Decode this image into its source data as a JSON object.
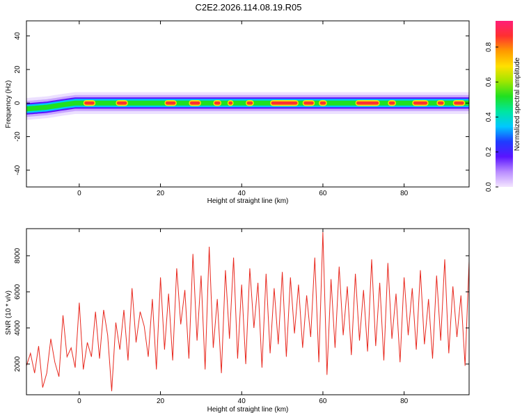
{
  "figure_title": "C2E2.2026.114.08.19.R05",
  "colors": {
    "snr_line": "#e8281e",
    "frame": "#000000"
  },
  "chart_data": [
    {
      "type": "heatmap",
      "xlabel": "Height of straight line (km)",
      "ylabel": "Frequency (Hz)",
      "xlim": [
        -13,
        96
      ],
      "ylim": [
        -50,
        49
      ],
      "xticks": [
        0,
        20,
        40,
        60,
        80
      ],
      "yticks": [
        -40,
        -20,
        0,
        20,
        40
      ],
      "colorbar": {
        "label": "Normalized spectral amplitude",
        "range": [
          0,
          0.95
        ],
        "ticks": [
          0.0,
          0.2,
          0.4,
          0.6,
          0.8
        ],
        "tick_labels": [
          "0.0",
          "0.2",
          "0.4",
          "0.6",
          "0.8"
        ],
        "colormap": [
          "#f4e6ff",
          "#b98cff",
          "#5a14ff",
          "#1e3cff",
          "#00c8ff",
          "#00e6a0",
          "#20e020",
          "#a0e600",
          "#ffe000",
          "#ff9a00",
          "#ff3030",
          "#ff1e78"
        ]
      },
      "band": {
        "center_hz": [
          [
            -13,
            -3.5
          ],
          [
            -8,
            -2.5
          ],
          [
            -4,
            -1
          ],
          [
            -1,
            0
          ],
          [
            5,
            0
          ],
          [
            15,
            0
          ],
          [
            40,
            0
          ],
          [
            96,
            0
          ]
        ],
        "half_width_hz": 2.5,
        "hot_segments_km": [
          [
            1,
            4
          ],
          [
            9,
            12
          ],
          [
            21,
            24
          ],
          [
            27,
            30
          ],
          [
            33,
            35
          ],
          [
            36.5,
            38
          ],
          [
            41,
            43
          ],
          [
            47,
            54
          ],
          [
            55,
            58
          ],
          [
            59,
            61
          ],
          [
            68,
            74
          ],
          [
            76,
            78
          ],
          [
            82,
            86
          ],
          [
            88,
            90
          ],
          [
            92,
            95
          ]
        ]
      },
      "grid": false
    },
    {
      "type": "line",
      "xlabel": "Height of straight line (km)",
      "ylabel": "SNR (10 * v/v)",
      "xlim": [
        -13,
        96
      ],
      "ylim": [
        300,
        9500
      ],
      "xticks": [
        0,
        20,
        40,
        60,
        80
      ],
      "yticks": [
        2000,
        4000,
        6000,
        8000
      ],
      "series": [
        {
          "x": [
            -13,
            -12,
            -11,
            -10,
            -9,
            -8,
            -7,
            -6,
            -5,
            -4,
            -3,
            -2,
            -1,
            0,
            1,
            2,
            3,
            4,
            5,
            6,
            7,
            8,
            9,
            10,
            11,
            12,
            13,
            14,
            15,
            16,
            17,
            18,
            19,
            20,
            21,
            22,
            23,
            24,
            25,
            26,
            27,
            28,
            29,
            30,
            31,
            32,
            33,
            34,
            35,
            36,
            37,
            38,
            39,
            40,
            41,
            42,
            43,
            44,
            45,
            46,
            47,
            48,
            49,
            50,
            51,
            52,
            53,
            54,
            55,
            56,
            57,
            58,
            59,
            60,
            61,
            62,
            63,
            64,
            65,
            66,
            67,
            68,
            69,
            70,
            71,
            72,
            73,
            74,
            75,
            76,
            77,
            78,
            79,
            80,
            81,
            82,
            83,
            84,
            85,
            86,
            87,
            88,
            89,
            90,
            91,
            92,
            93,
            94,
            95,
            96
          ],
          "values": [
            1900,
            2600,
            1500,
            3000,
            700,
            1500,
            3400,
            2100,
            1300,
            4700,
            2400,
            2900,
            1800,
            5400,
            1700,
            3200,
            2400,
            4900,
            2300,
            5000,
            3600,
            500,
            4300,
            2800,
            5000,
            2200,
            6200,
            3200,
            4900,
            4100,
            2400,
            5600,
            1700,
            6800,
            2800,
            5900,
            2200,
            7300,
            4200,
            6100,
            2300,
            8100,
            3300,
            6900,
            1700,
            8500,
            2900,
            5600,
            1500,
            7200,
            3400,
            7900,
            2300,
            6400,
            2000,
            7300,
            4000,
            6500,
            1800,
            7000,
            2600,
            6200,
            3100,
            7100,
            2400,
            6800,
            3700,
            6400,
            2900,
            5800,
            3500,
            7900,
            2100,
            9300,
            1400,
            6700,
            2900,
            7400,
            3600,
            6300,
            2500,
            7000,
            3300,
            6100,
            2700,
            7800,
            3000,
            6500,
            2200,
            7600,
            3400,
            5900,
            2100,
            6800,
            3600,
            6200,
            2800,
            7200,
            3100,
            5600,
            2300,
            6900,
            3300,
            7800,
            2600,
            6300,
            3500,
            5800,
            1900,
            7700
          ]
        }
      ],
      "grid": false
    }
  ]
}
